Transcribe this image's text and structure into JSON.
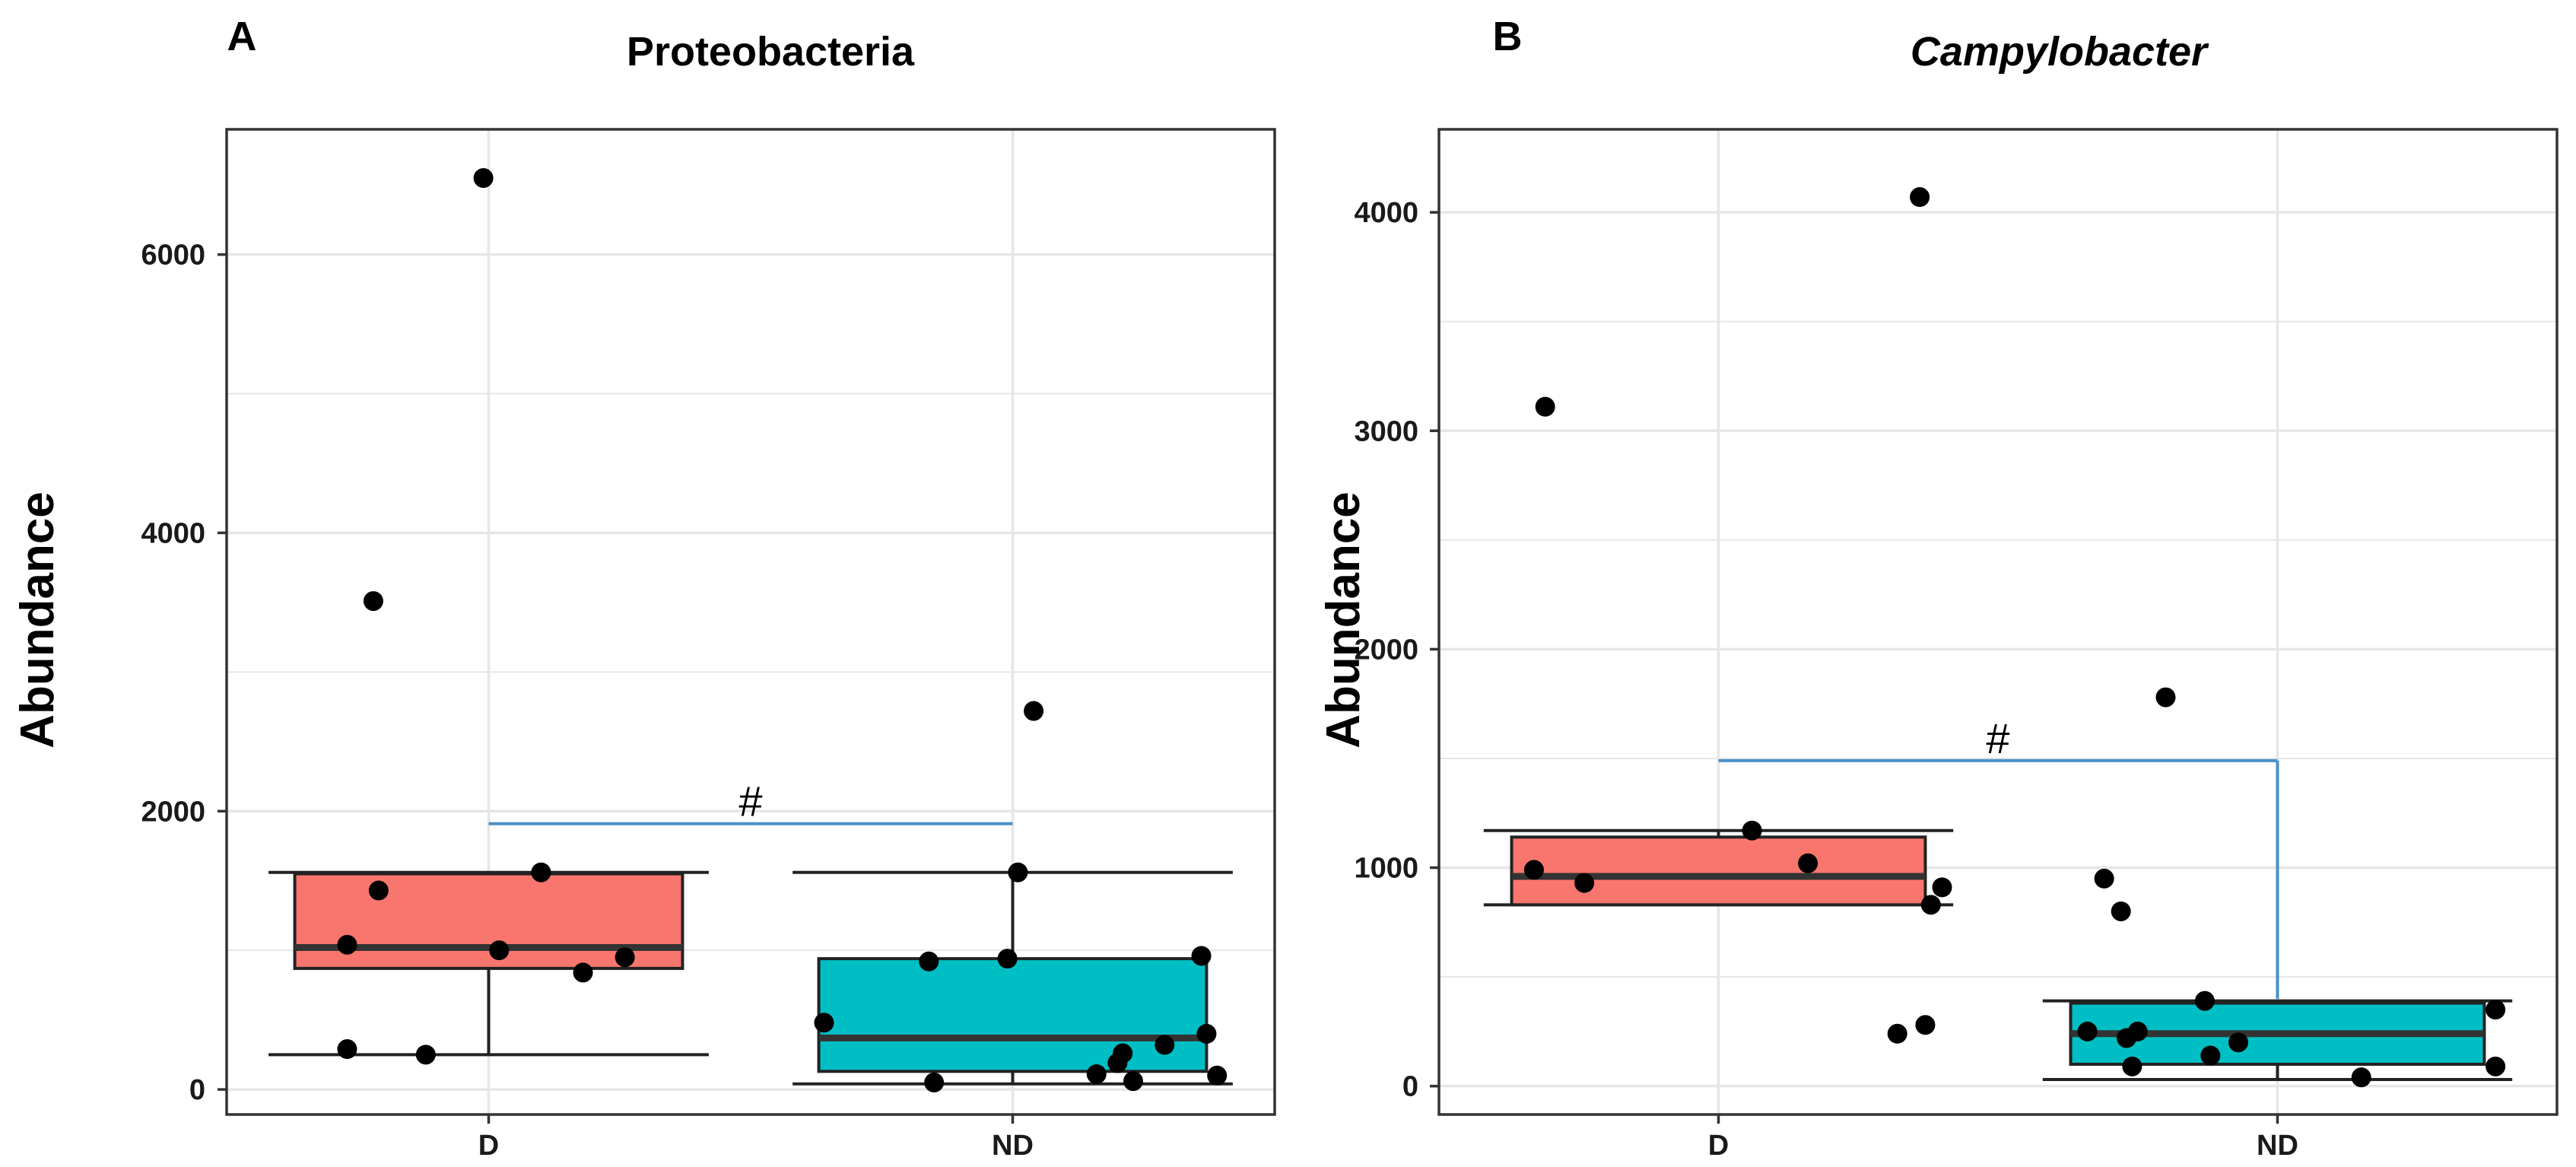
{
  "chart_data": [
    {
      "panel_label": "A",
      "type": "box",
      "title": "Proteobacteria",
      "title_italic": false,
      "xlabel": "",
      "ylabel": "Abundance",
      "ylim": [
        -180,
        6900
      ],
      "yticks": [
        0,
        2000,
        4000,
        6000
      ],
      "yticklabels": [
        "0",
        "2000",
        "4000",
        "6000"
      ],
      "grid": true,
      "categories": [
        "D",
        "ND"
      ],
      "boxes": [
        {
          "category": "D",
          "color": "#F8766D",
          "whisker_low": 250,
          "q1": 870,
          "median": 1020,
          "q3": 1550,
          "whisker_high": 1560
        },
        {
          "category": "ND",
          "color": "#00BFC4",
          "whisker_low": 40,
          "q1": 130,
          "median": 370,
          "q3": 940,
          "whisker_high": 1560
        }
      ],
      "points": [
        {
          "category": "D",
          "x": 0.99,
          "y": 6550
        },
        {
          "category": "D",
          "x": 0.78,
          "y": 3510
        },
        {
          "category": "D",
          "x": 0.79,
          "y": 1430
        },
        {
          "category": "D",
          "x": 1.1,
          "y": 1560
        },
        {
          "category": "D",
          "x": 0.73,
          "y": 1040
        },
        {
          "category": "D",
          "x": 1.02,
          "y": 1000
        },
        {
          "category": "D",
          "x": 1.18,
          "y": 840
        },
        {
          "category": "D",
          "x": 1.26,
          "y": 950
        },
        {
          "category": "D",
          "x": 0.73,
          "y": 290
        },
        {
          "category": "D",
          "x": 0.88,
          "y": 250
        },
        {
          "category": "ND",
          "x": 2.04,
          "y": 2720
        },
        {
          "category": "ND",
          "x": 2.01,
          "y": 1560
        },
        {
          "category": "ND",
          "x": 1.84,
          "y": 920
        },
        {
          "category": "ND",
          "x": 1.99,
          "y": 940
        },
        {
          "category": "ND",
          "x": 2.36,
          "y": 960
        },
        {
          "category": "ND",
          "x": 1.64,
          "y": 480
        },
        {
          "category": "ND",
          "x": 2.37,
          "y": 400
        },
        {
          "category": "ND",
          "x": 2.29,
          "y": 320
        },
        {
          "category": "ND",
          "x": 2.21,
          "y": 260
        },
        {
          "category": "ND",
          "x": 2.2,
          "y": 190
        },
        {
          "category": "ND",
          "x": 2.16,
          "y": 110
        },
        {
          "category": "ND",
          "x": 2.39,
          "y": 100
        },
        {
          "category": "ND",
          "x": 2.23,
          "y": 60
        },
        {
          "category": "ND",
          "x": 1.85,
          "y": 50
        }
      ],
      "significance": {
        "label": "#",
        "y": 1910,
        "from": "D",
        "to": "ND",
        "drop_y": null
      }
    },
    {
      "panel_label": "B",
      "type": "box",
      "title": "Campylobacter",
      "title_italic": true,
      "xlabel": "",
      "ylabel": "Abundance",
      "ylim": [
        -130,
        4380
      ],
      "yticks": [
        0,
        1000,
        2000,
        3000,
        4000
      ],
      "yticklabels": [
        "0",
        "1000",
        "2000",
        "3000",
        "4000"
      ],
      "grid": true,
      "categories": [
        "D",
        "ND"
      ],
      "boxes": [
        {
          "category": "D",
          "color": "#F8766D",
          "whisker_low": 830,
          "q1": 830,
          "median": 960,
          "q3": 1140,
          "whisker_high": 1170
        },
        {
          "category": "ND",
          "color": "#00BFC4",
          "whisker_low": 30,
          "q1": 100,
          "median": 240,
          "q3": 380,
          "whisker_high": 390
        }
      ],
      "points": [
        {
          "category": "D",
          "x": 1.36,
          "y": 4070
        },
        {
          "category": "D",
          "x": 0.69,
          "y": 3110
        },
        {
          "category": "D",
          "x": 0.67,
          "y": 990
        },
        {
          "category": "D",
          "x": 0.76,
          "y": 930
        },
        {
          "category": "D",
          "x": 1.06,
          "y": 1170
        },
        {
          "category": "D",
          "x": 1.16,
          "y": 1020
        },
        {
          "category": "D",
          "x": 1.4,
          "y": 910
        },
        {
          "category": "D",
          "x": 1.38,
          "y": 830
        },
        {
          "category": "D",
          "x": 1.32,
          "y": 240
        },
        {
          "category": "D",
          "x": 1.37,
          "y": 280
        },
        {
          "category": "ND",
          "x": 1.8,
          "y": 1780
        },
        {
          "category": "ND",
          "x": 1.69,
          "y": 950
        },
        {
          "category": "ND",
          "x": 1.72,
          "y": 800
        },
        {
          "category": "ND",
          "x": 1.87,
          "y": 390
        },
        {
          "category": "ND",
          "x": 1.66,
          "y": 250
        },
        {
          "category": "ND",
          "x": 1.75,
          "y": 250
        },
        {
          "category": "ND",
          "x": 1.73,
          "y": 220
        },
        {
          "category": "ND",
          "x": 1.93,
          "y": 200
        },
        {
          "category": "ND",
          "x": 1.88,
          "y": 140
        },
        {
          "category": "ND",
          "x": 1.74,
          "y": 90
        },
        {
          "category": "ND",
          "x": 2.39,
          "y": 350
        },
        {
          "category": "ND",
          "x": 2.39,
          "y": 90
        },
        {
          "category": "ND",
          "x": 2.15,
          "y": 40
        }
      ],
      "significance": {
        "label": "#",
        "y": 1490,
        "from": "D",
        "to": "ND",
        "drop_y": 400
      }
    }
  ],
  "colors": {
    "grid": "#e6e6e6",
    "frame": "#333333",
    "line": "#222222",
    "point": "#000000",
    "significance": "#4a90c8",
    "text": "#000000"
  }
}
